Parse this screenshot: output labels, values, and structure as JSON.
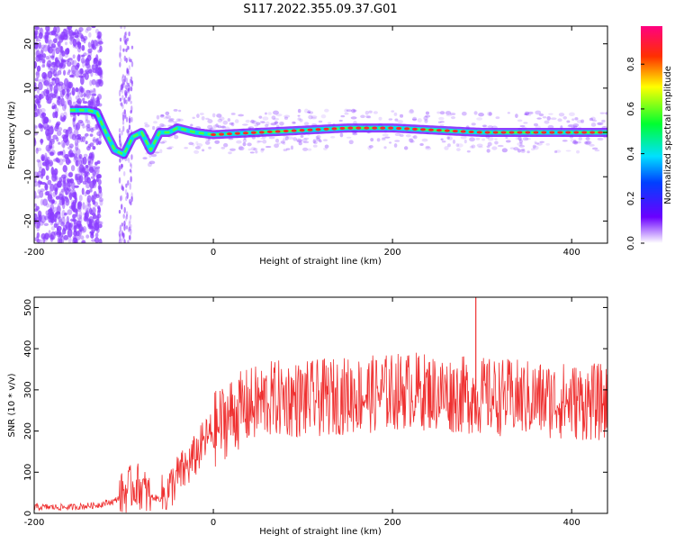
{
  "title": "S117.2022.355.09.37.G01",
  "colors": {
    "snr_line": "#ef3030",
    "spectral_ridge": [
      "#7d1cff",
      "#00e0e8",
      "#50ff40",
      "#ff2a2a"
    ],
    "spectral_scatter": "#8a3cff"
  },
  "colorbar": {
    "label": "Normalized spectral amplitude",
    "ticks": [
      "0.0",
      "0.2",
      "0.4",
      "0.6",
      "0.8"
    ],
    "range": [
      0,
      0.97
    ]
  },
  "chart_data": [
    {
      "type": "heatmap",
      "xlabel": "Height of straight line (km)",
      "ylabel": "Frequency (Hz)",
      "xlim": [
        -200,
        440
      ],
      "ylim": [
        -25,
        24
      ],
      "xticks": [
        "-200",
        "0",
        "200",
        "400"
      ],
      "yticks": [
        "20",
        "10",
        "0",
        "-10",
        "-20"
      ],
      "ridge": {
        "x": [
          -160,
          -140,
          -130,
          -120,
          -110,
          -100,
          -90,
          -80,
          -70,
          -60,
          -50,
          -40,
          -20,
          0,
          50,
          100,
          150,
          200,
          250,
          300,
          350,
          400,
          440
        ],
        "y": [
          5,
          5,
          4.5,
          0,
          -4,
          -5,
          -1,
          0,
          -4,
          0,
          0,
          1,
          0,
          -0.5,
          0,
          0.5,
          1,
          1,
          0.5,
          0,
          0,
          0,
          0
        ]
      }
    },
    {
      "type": "line",
      "xlabel": "Height of straight line (km)",
      "ylabel": "SNR (10 * v/v)",
      "xlim": [
        -200,
        440
      ],
      "ylim": [
        0,
        525
      ],
      "xticks": [
        "-200",
        "0",
        "200",
        "400"
      ],
      "yticks": [
        "500",
        "400",
        "300",
        "200",
        "100",
        "0"
      ],
      "envelope": {
        "x": [
          -200,
          -160,
          -130,
          -110,
          -95,
          -85,
          -70,
          -60,
          -50,
          -40,
          -30,
          -20,
          -10,
          0,
          20,
          40,
          60,
          80,
          100,
          140,
          180,
          220,
          260,
          300,
          340,
          380,
          420,
          440
        ],
        "y": [
          15,
          15,
          20,
          30,
          60,
          70,
          40,
          35,
          55,
          90,
          110,
          140,
          175,
          200,
          240,
          260,
          275,
          280,
          275,
          285,
          290,
          300,
          290,
          285,
          280,
          275,
          270,
          270
        ]
      },
      "notable_points": {
        "x": [
          293
        ],
        "y": [
          525
        ]
      }
    }
  ]
}
